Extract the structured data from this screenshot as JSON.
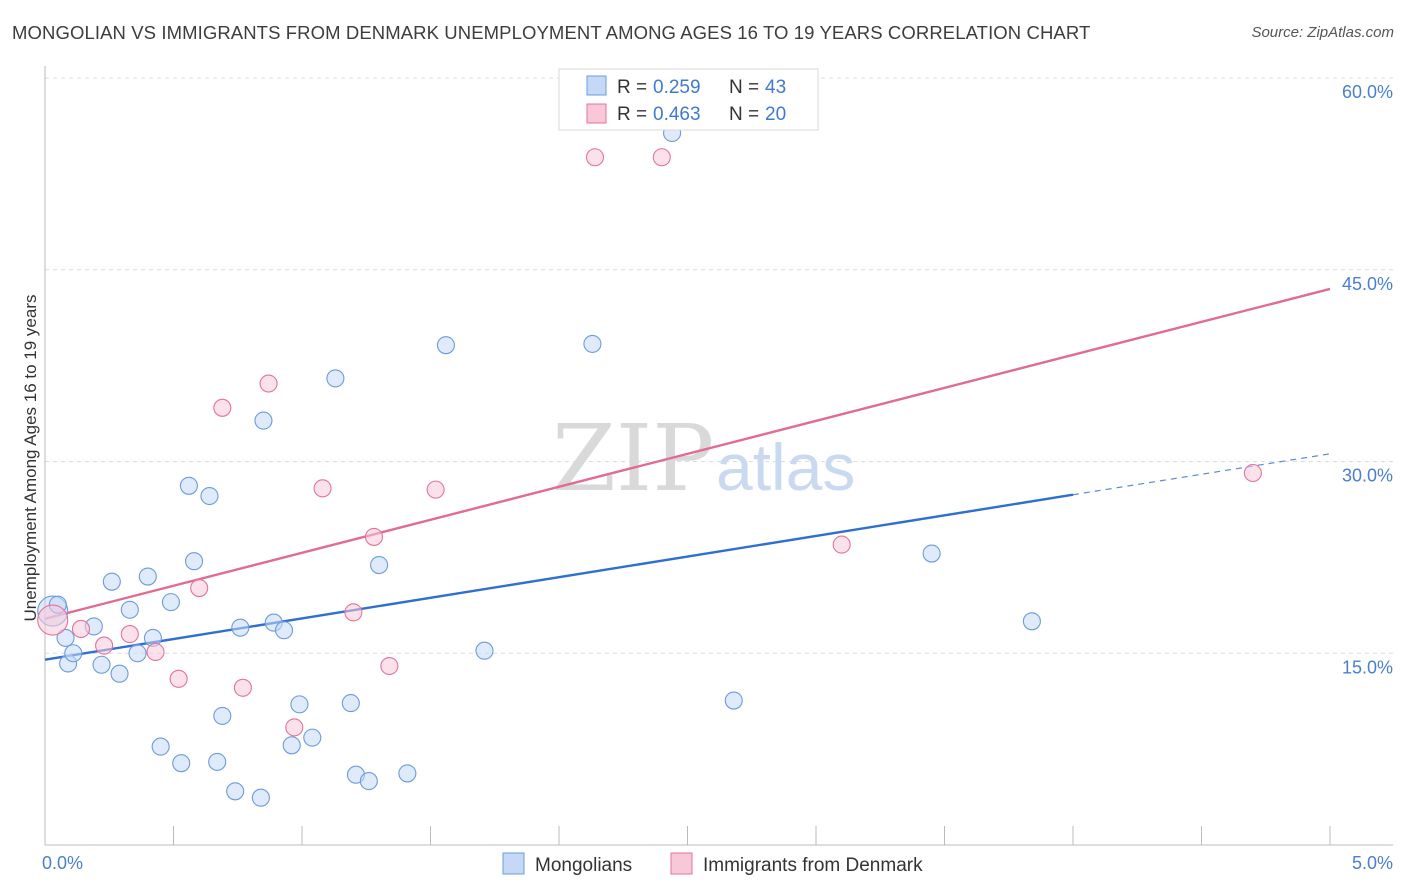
{
  "header": {
    "title": "MONGOLIAN VS IMMIGRANTS FROM DENMARK UNEMPLOYMENT AMONG AGES 16 TO 19 YEARS CORRELATION CHART",
    "source": "Source: ZipAtlas.com"
  },
  "watermark": {
    "part1": "ZIP",
    "part2": "atlas"
  },
  "chart_data": {
    "type": "scatter",
    "title": "MONGOLIAN VS IMMIGRANTS FROM DENMARK UNEMPLOYMENT AMONG AGES 16 TO 19 YEARS CORRELATION CHART",
    "xlabel": "",
    "ylabel": "Unemployment Among Ages 16 to 19 years",
    "xlim": [
      0,
      5
    ],
    "ylim": [
      0,
      60
    ],
    "x_tick_labels": [
      {
        "value": 0,
        "label": "0.0%"
      },
      {
        "value": 5,
        "label": "5.0%"
      }
    ],
    "y_tick_labels": [
      {
        "value": 15,
        "label": "15.0%"
      },
      {
        "value": 30,
        "label": "30.0%"
      },
      {
        "value": 45,
        "label": "45.0%"
      },
      {
        "value": 60,
        "label": "60.0%"
      }
    ],
    "legend": [
      {
        "r_label": "R =",
        "r_value": "0.259",
        "n_label": "N =",
        "n_value": "43"
      },
      {
        "r_label": "R =",
        "r_value": "0.463",
        "n_label": "N =",
        "n_value": "20"
      }
    ],
    "series": [
      {
        "name": "Mongolians",
        "color": "#6b9be0",
        "fill": "#c5d8f5",
        "trend": {
          "x1": 0,
          "y1": 14.5,
          "x2": 4.0,
          "y2": 27.4,
          "dash_to_x": 5.0,
          "dash_to_y": 30.6
        },
        "points": [
          {
            "x": 0.03,
            "y": 18.3,
            "big": true
          },
          {
            "x": 0.08,
            "y": 16.2
          },
          {
            "x": 0.09,
            "y": 14.2
          },
          {
            "x": 0.11,
            "y": 15.0
          },
          {
            "x": 0.19,
            "y": 17.1
          },
          {
            "x": 0.22,
            "y": 14.1
          },
          {
            "x": 0.26,
            "y": 20.6
          },
          {
            "x": 0.29,
            "y": 13.4
          },
          {
            "x": 0.33,
            "y": 18.4
          },
          {
            "x": 0.36,
            "y": 15.0
          },
          {
            "x": 0.4,
            "y": 21.0
          },
          {
            "x": 0.42,
            "y": 16.2
          },
          {
            "x": 0.45,
            "y": 7.7
          },
          {
            "x": 0.49,
            "y": 19.0
          },
          {
            "x": 0.53,
            "y": 6.4
          },
          {
            "x": 0.56,
            "y": 28.1
          },
          {
            "x": 0.58,
            "y": 22.2
          },
          {
            "x": 0.64,
            "y": 27.3
          },
          {
            "x": 0.67,
            "y": 6.5
          },
          {
            "x": 0.69,
            "y": 10.1
          },
          {
            "x": 0.74,
            "y": 4.2
          },
          {
            "x": 0.76,
            "y": 17.0
          },
          {
            "x": 0.84,
            "y": 3.7
          },
          {
            "x": 0.85,
            "y": 33.2
          },
          {
            "x": 0.89,
            "y": 17.4
          },
          {
            "x": 0.93,
            "y": 16.8
          },
          {
            "x": 0.96,
            "y": 7.8
          },
          {
            "x": 0.99,
            "y": 11.0
          },
          {
            "x": 1.04,
            "y": 8.4
          },
          {
            "x": 1.13,
            "y": 36.5
          },
          {
            "x": 1.19,
            "y": 11.1
          },
          {
            "x": 1.21,
            "y": 5.5
          },
          {
            "x": 1.26,
            "y": 5.0
          },
          {
            "x": 1.3,
            "y": 21.9
          },
          {
            "x": 1.41,
            "y": 5.6
          },
          {
            "x": 1.56,
            "y": 39.1
          },
          {
            "x": 1.71,
            "y": 15.2
          },
          {
            "x": 2.13,
            "y": 39.2
          },
          {
            "x": 2.44,
            "y": 55.7
          },
          {
            "x": 2.68,
            "y": 11.3
          },
          {
            "x": 3.45,
            "y": 22.8
          },
          {
            "x": 3.84,
            "y": 17.5
          },
          {
            "x": 0.05,
            "y": 18.8
          }
        ]
      },
      {
        "name": "Immigrants from Denmark",
        "color": "#e57399",
        "fill": "#f8c8d8",
        "trend": {
          "x1": 0,
          "y1": 17.7,
          "x2": 5.0,
          "y2": 43.5
        },
        "points": [
          {
            "x": 0.03,
            "y": 17.6,
            "big": true
          },
          {
            "x": 0.14,
            "y": 16.9
          },
          {
            "x": 0.23,
            "y": 15.6
          },
          {
            "x": 0.33,
            "y": 16.5
          },
          {
            "x": 0.43,
            "y": 15.1
          },
          {
            "x": 0.52,
            "y": 13.0
          },
          {
            "x": 0.6,
            "y": 20.1
          },
          {
            "x": 0.69,
            "y": 34.2
          },
          {
            "x": 0.77,
            "y": 12.3
          },
          {
            "x": 0.87,
            "y": 36.1
          },
          {
            "x": 0.97,
            "y": 9.2
          },
          {
            "x": 1.08,
            "y": 27.9
          },
          {
            "x": 1.2,
            "y": 18.2
          },
          {
            "x": 1.28,
            "y": 24.1
          },
          {
            "x": 1.34,
            "y": 14.0
          },
          {
            "x": 1.52,
            "y": 27.8
          },
          {
            "x": 2.14,
            "y": 53.8
          },
          {
            "x": 2.4,
            "y": 53.8
          },
          {
            "x": 3.1,
            "y": 23.5
          },
          {
            "x": 4.7,
            "y": 29.1
          }
        ]
      }
    ]
  }
}
